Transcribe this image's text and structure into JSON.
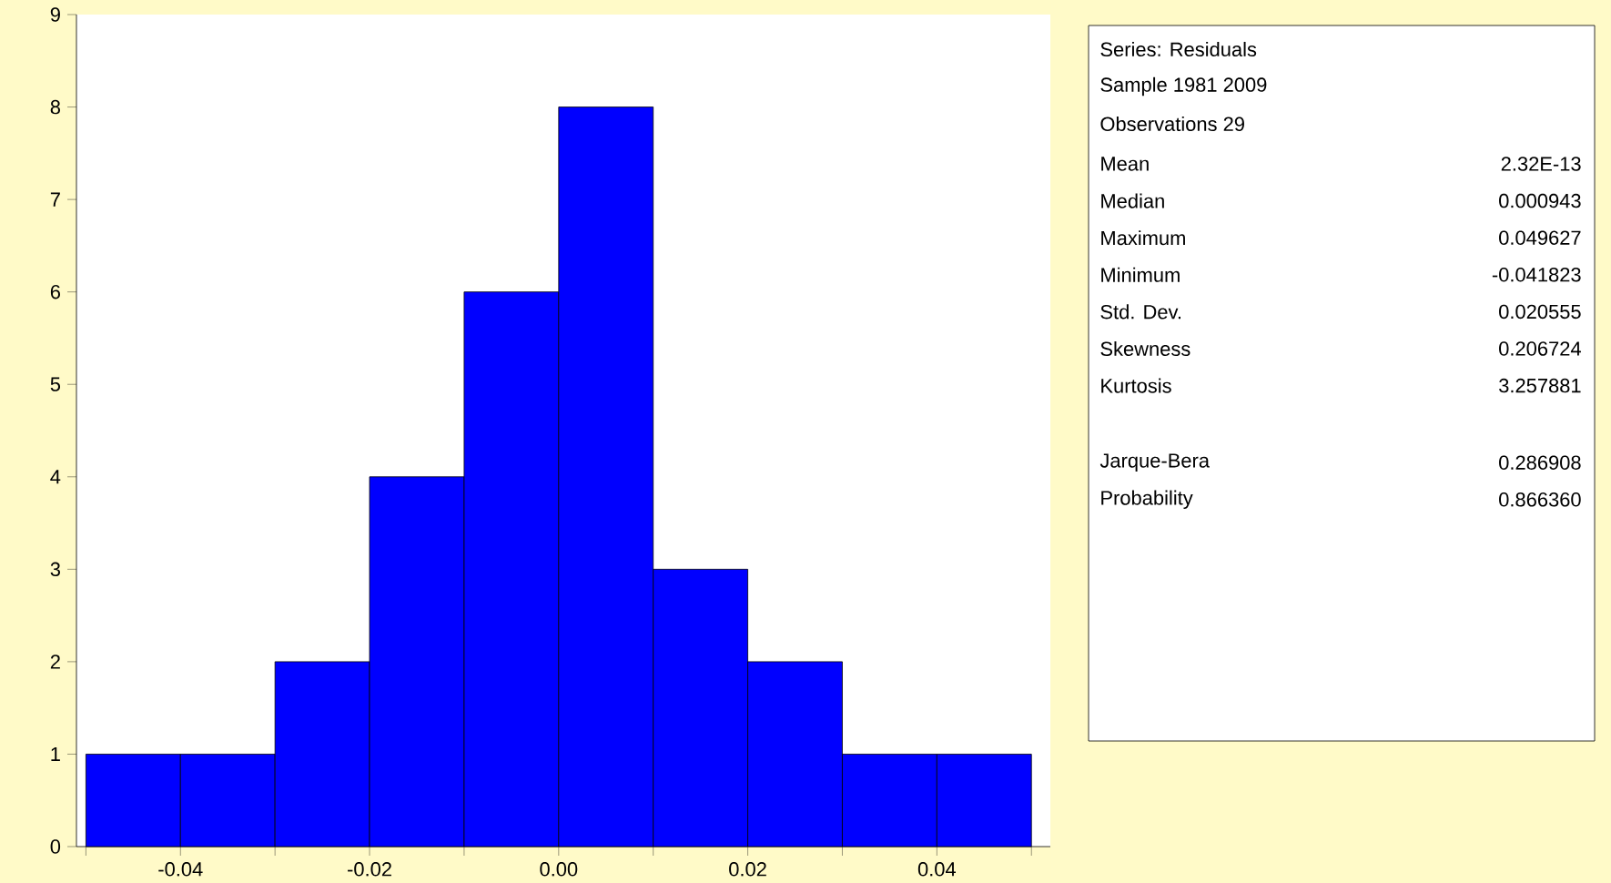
{
  "chart_data": [
    {
      "type": "histogram",
      "bins": [
        -0.05,
        -0.04,
        -0.03,
        -0.02,
        -0.01,
        0.0,
        0.01,
        0.02,
        0.03,
        0.04,
        0.05
      ],
      "values": [
        1,
        1,
        2,
        4,
        6,
        8,
        3,
        2,
        1,
        1
      ],
      "color": "#0000ff",
      "xlim": [
        -0.051,
        0.052
      ],
      "ylim": [
        0,
        9
      ],
      "xticks": [
        {
          "value": -0.05,
          "label": null
        },
        -0.04,
        {
          "value": -0.03,
          "label": null
        },
        -0.02,
        {
          "value": -0.01,
          "label": null
        },
        {
          "value": 0.0,
          "label": "0.00"
        },
        {
          "value": 0.01,
          "label": null
        },
        0.02,
        {
          "value": 0.03,
          "label": null
        },
        0.04,
        {
          "value": 0.05,
          "label": null
        }
      ],
      "yticks": [
        0,
        1,
        2,
        3,
        4,
        5,
        6,
        7,
        8,
        9
      ]
    },
    {
      "type": "other",
      "annotations": [
        "Series: Residuals",
        "Sample 1981 2009",
        "Observations 29",
        "Mean",
        "2.32E-13",
        "Median",
        "0.000943",
        "Maximum",
        "0.049627",
        "Minimum",
        "-0.041823",
        "Std. Dev.",
        "0.020555",
        "Skewness",
        "0.206724",
        "Kurtosis",
        "3.257881",
        "Jarque-Bera",
        "0.286908",
        "Probability",
        "0.866360"
      ]
    }
  ]
}
